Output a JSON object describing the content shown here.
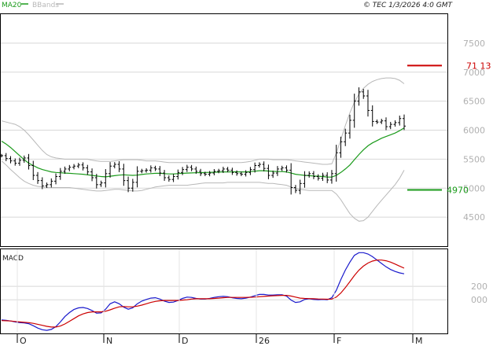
{
  "header": {
    "indicators": [
      {
        "label": "MA20",
        "color": "#1a9a1a"
      },
      {
        "label": "BBands",
        "color": "#b8b8b8"
      }
    ],
    "copyright": "© TEC 1/3/2026 4:0 GMT"
  },
  "lower_panel_label": "MACD",
  "chart_data": [
    {
      "type": "ohlc",
      "panel": "price",
      "ylim": [
        4000,
        8000
      ],
      "y_ticks": [
        "7500",
        "7000",
        "6500",
        "6000",
        "5500",
        "5000",
        "4500"
      ],
      "x_ticks": [
        "O",
        "N",
        "D",
        "26",
        "F",
        "M"
      ],
      "levels": [
        {
          "value": 7113,
          "label": "71 13",
          "color": "#cc0000"
        },
        {
          "value": 4970,
          "label": "4970",
          "color": "#1a9a1a"
        }
      ],
      "close": [
        5560,
        5510,
        5470,
        5430,
        5480,
        5520,
        5390,
        5220,
        5130,
        5040,
        5060,
        5120,
        5200,
        5290,
        5330,
        5360,
        5380,
        5400,
        5350,
        5280,
        5180,
        5060,
        5090,
        5250,
        5380,
        5410,
        5330,
        5130,
        5000,
        5100,
        5290,
        5300,
        5310,
        5350,
        5330,
        5260,
        5180,
        5150,
        5200,
        5270,
        5320,
        5360,
        5330,
        5290,
        5250,
        5240,
        5260,
        5290,
        5300,
        5330,
        5310,
        5270,
        5250,
        5240,
        5270,
        5320,
        5390,
        5410,
        5340,
        5220,
        5260,
        5330,
        5350,
        5310,
        5010,
        4960,
        5080,
        5220,
        5250,
        5200,
        5170,
        5220,
        5140,
        5250,
        5610,
        5800,
        5950,
        6170,
        6500,
        6660,
        6590,
        6340,
        6150,
        6140,
        6160,
        6060,
        6100,
        6130,
        6200,
        6070
      ],
      "ma20": [
        5810,
        5760,
        5700,
        5630,
        5560,
        5490,
        5430,
        5390,
        5350,
        5320,
        5300,
        5280,
        5270,
        5265,
        5260,
        5255,
        5250,
        5245,
        5240,
        5230,
        5220,
        5210,
        5200,
        5195,
        5205,
        5215,
        5225,
        5230,
        5225,
        5220,
        5225,
        5235,
        5245,
        5250,
        5255,
        5255,
        5250,
        5245,
        5245,
        5250,
        5255,
        5260,
        5262,
        5265,
        5268,
        5270,
        5272,
        5274,
        5276,
        5278,
        5280,
        5282,
        5282,
        5280,
        5280,
        5285,
        5292,
        5300,
        5300,
        5295,
        5290,
        5285,
        5285,
        5280,
        5260,
        5240,
        5230,
        5220,
        5215,
        5210,
        5205,
        5200,
        5190,
        5190,
        5220,
        5270,
        5330,
        5400,
        5490,
        5580,
        5660,
        5730,
        5780,
        5820,
        5860,
        5890,
        5920,
        5950,
        5990,
        6040
      ],
      "bb_upper": [
        6160,
        6140,
        6120,
        6100,
        6060,
        6000,
        5920,
        5830,
        5740,
        5650,
        5580,
        5540,
        5520,
        5510,
        5500,
        5500,
        5500,
        5500,
        5500,
        5500,
        5480,
        5470,
        5460,
        5460,
        5460,
        5470,
        5480,
        5490,
        5490,
        5490,
        5490,
        5480,
        5470,
        5470,
        5470,
        5460,
        5450,
        5440,
        5440,
        5440,
        5440,
        5440,
        5440,
        5440,
        5440,
        5440,
        5440,
        5440,
        5440,
        5440,
        5440,
        5440,
        5440,
        5440,
        5450,
        5460,
        5480,
        5500,
        5500,
        5500,
        5490,
        5490,
        5490,
        5490,
        5480,
        5470,
        5460,
        5450,
        5440,
        5430,
        5420,
        5410,
        5410,
        5420,
        5600,
        5840,
        6080,
        6300,
        6480,
        6620,
        6720,
        6790,
        6840,
        6870,
        6890,
        6900,
        6900,
        6890,
        6860,
        6800
      ],
      "bb_lower": [
        5470,
        5400,
        5320,
        5250,
        5180,
        5120,
        5080,
        5050,
        5030,
        5020,
        5010,
        5010,
        5010,
        5010,
        5010,
        5010,
        5000,
        4990,
        4980,
        4970,
        4960,
        4950,
        4950,
        4960,
        4970,
        4980,
        4980,
        4970,
        4960,
        4950,
        4950,
        4960,
        4980,
        5000,
        5020,
        5030,
        5040,
        5050,
        5050,
        5050,
        5050,
        5050,
        5060,
        5070,
        5080,
        5090,
        5090,
        5090,
        5090,
        5090,
        5100,
        5100,
        5100,
        5100,
        5100,
        5100,
        5100,
        5100,
        5090,
        5080,
        5080,
        5070,
        5060,
        5050,
        5020,
        4990,
        4980,
        4970,
        4960,
        4960,
        4960,
        4960,
        4960,
        4960,
        4900,
        4800,
        4680,
        4560,
        4480,
        4430,
        4440,
        4500,
        4600,
        4700,
        4790,
        4880,
        4970,
        5060,
        5170,
        5310
      ]
    },
    {
      "type": "line",
      "panel": "macd",
      "ylim": [
        -500,
        750
      ],
      "y_ticks": [
        "200",
        "000"
      ],
      "series": [
        {
          "color": "#1a1acc",
          "values": [
            -300,
            -305,
            -315,
            -330,
            -340,
            -345,
            -355,
            -385,
            -420,
            -445,
            -455,
            -440,
            -400,
            -330,
            -250,
            -190,
            -145,
            -120,
            -115,
            -130,
            -160,
            -200,
            -195,
            -140,
            -60,
            -30,
            -60,
            -110,
            -140,
            -120,
            -60,
            -20,
            5,
            25,
            30,
            10,
            -20,
            -40,
            -35,
            -10,
            20,
            40,
            35,
            20,
            10,
            10,
            20,
            35,
            45,
            50,
            45,
            30,
            20,
            15,
            25,
            40,
            60,
            80,
            80,
            70,
            70,
            75,
            75,
            55,
            -5,
            -40,
            -30,
            5,
            15,
            5,
            0,
            5,
            0,
            30,
            140,
            300,
            440,
            560,
            660,
            700,
            700,
            680,
            640,
            590,
            540,
            490,
            450,
            420,
            400,
            385
          ]
        },
        {
          "color": "#cc0000",
          "values": [
            -310,
            -312,
            -316,
            -322,
            -330,
            -335,
            -340,
            -350,
            -365,
            -380,
            -395,
            -405,
            -405,
            -390,
            -360,
            -320,
            -280,
            -240,
            -210,
            -190,
            -180,
            -180,
            -180,
            -170,
            -150,
            -125,
            -105,
            -100,
            -105,
            -105,
            -95,
            -80,
            -60,
            -40,
            -25,
            -15,
            -10,
            -10,
            -10,
            -10,
            -5,
            0,
            10,
            15,
            15,
            15,
            15,
            20,
            25,
            30,
            35,
            35,
            35,
            35,
            35,
            37,
            40,
            45,
            50,
            55,
            60,
            62,
            65,
            65,
            55,
            40,
            25,
            20,
            18,
            15,
            12,
            10,
            8,
            10,
            40,
            100,
            180,
            270,
            360,
            440,
            500,
            545,
            575,
            590,
            590,
            580,
            560,
            530,
            500,
            470
          ]
        }
      ]
    }
  ]
}
